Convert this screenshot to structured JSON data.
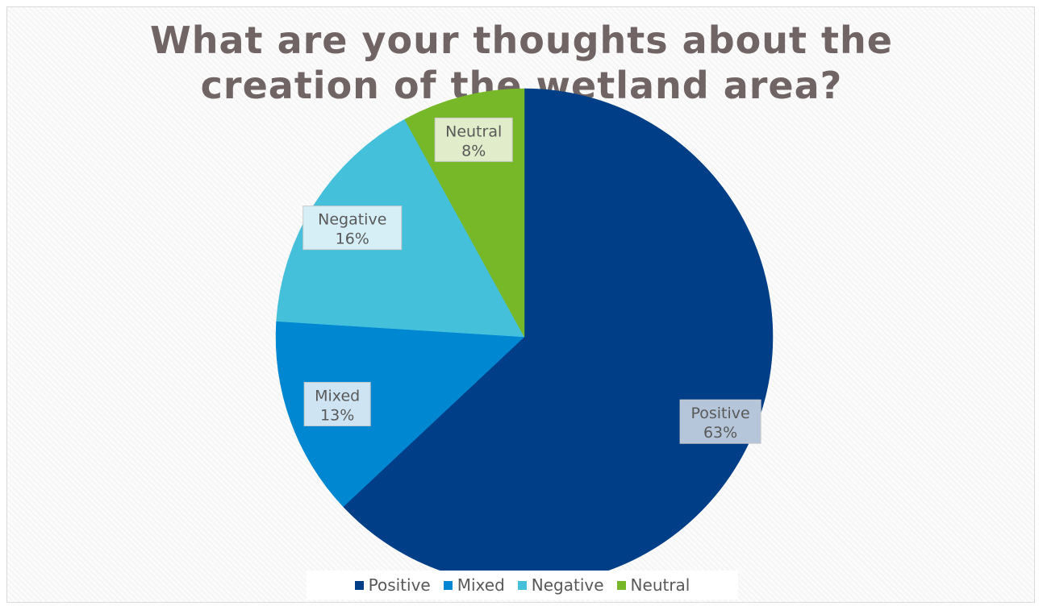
{
  "chart_data": {
    "type": "pie",
    "title_lines": [
      "What are your thoughts about the",
      "creation of the wetland area?"
    ],
    "categories": [
      "Positive",
      "Mixed",
      "Negative",
      "Neutral"
    ],
    "values": [
      63,
      13,
      16,
      8
    ],
    "value_labels": [
      "63%",
      "13%",
      "16%",
      "8%"
    ],
    "colors": [
      "#003f87",
      "#0087d2",
      "#45c0da",
      "#76b828"
    ],
    "label_backgrounds": [
      "#b6c6da",
      "#cfe4f3",
      "#d6eff6",
      "#e1eccb"
    ],
    "legend_position": "bottom"
  }
}
